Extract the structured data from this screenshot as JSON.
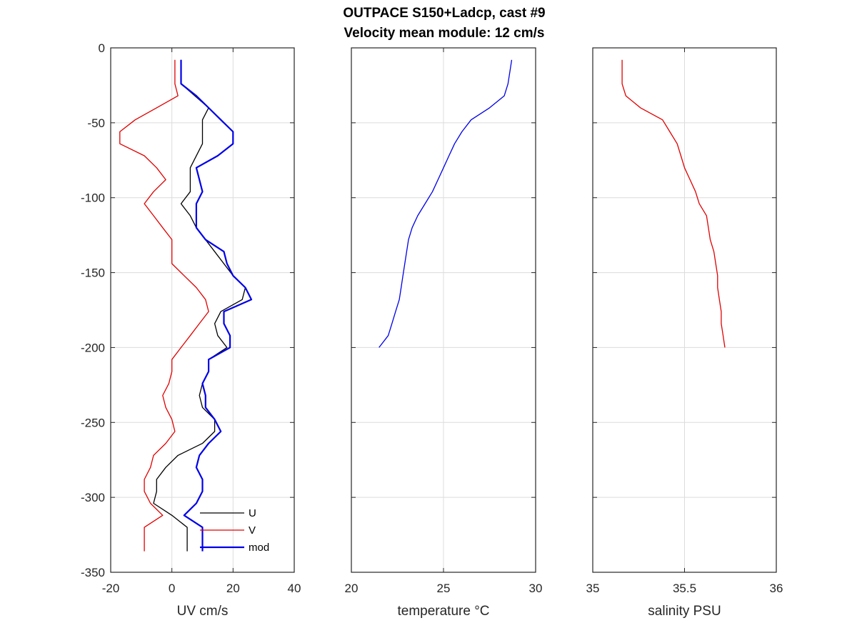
{
  "figure": {
    "title_line1": "OUTPACE S150+Ladcp, cast #9",
    "title_line2": "Velocity mean module:  12 cm/s"
  },
  "chart_data": [
    {
      "type": "line",
      "xlabel": "UV cm/s",
      "ylabel": "",
      "xlim": [
        -20,
        40
      ],
      "ylim": [
        -350,
        0
      ],
      "xticks": [
        -20,
        0,
        20,
        40
      ],
      "yticks": [
        -350,
        -300,
        -250,
        -200,
        -150,
        -100,
        -50,
        0
      ],
      "xtick_labels": [
        "-20",
        "0",
        "20",
        "40"
      ],
      "ytick_labels": [
        "-350",
        "-300",
        "-250",
        "-200",
        "-150",
        "-100",
        "-50",
        "0"
      ],
      "grid": true,
      "legend": "bottom-right",
      "series": [
        {
          "name": "U",
          "color": "#000000",
          "width": 1.3,
          "points": [
            [
              3,
              -8
            ],
            [
              3,
              -24
            ],
            [
              12,
              -40
            ],
            [
              10,
              -48
            ],
            [
              10,
              -64
            ],
            [
              6,
              -80
            ],
            [
              6,
              -96
            ],
            [
              3,
              -104
            ],
            [
              6,
              -112
            ],
            [
              8,
              -120
            ],
            [
              14,
              -136
            ],
            [
              20,
              -152
            ],
            [
              24,
              -160
            ],
            [
              23,
              -168
            ],
            [
              16,
              -176
            ],
            [
              14,
              -184
            ],
            [
              15,
              -192
            ],
            [
              18,
              -200
            ],
            [
              12,
              -208
            ],
            [
              12,
              -216
            ],
            [
              10,
              -224
            ],
            [
              9,
              -232
            ],
            [
              10,
              -240
            ],
            [
              14,
              -248
            ],
            [
              14,
              -256
            ],
            [
              10,
              -264
            ],
            [
              2,
              -272
            ],
            [
              -2,
              -280
            ],
            [
              -5,
              -288
            ],
            [
              -5,
              -296
            ],
            [
              -6,
              -304
            ],
            [
              0,
              -312
            ],
            [
              5,
              -320
            ],
            [
              5,
              -336
            ]
          ]
        },
        {
          "name": "V",
          "color": "#e00000",
          "width": 1.3,
          "points": [
            [
              1,
              -8
            ],
            [
              1,
              -24
            ],
            [
              2,
              -32
            ],
            [
              -5,
              -40
            ],
            [
              -12,
              -48
            ],
            [
              -17,
              -56
            ],
            [
              -17,
              -64
            ],
            [
              -9,
              -72
            ],
            [
              -5,
              -80
            ],
            [
              -2,
              -88
            ],
            [
              -6,
              -96
            ],
            [
              -9,
              -104
            ],
            [
              -6,
              -112
            ],
            [
              -3,
              -120
            ],
            [
              0,
              -128
            ],
            [
              0,
              -136
            ],
            [
              0,
              -144
            ],
            [
              4,
              -152
            ],
            [
              8,
              -160
            ],
            [
              11,
              -168
            ],
            [
              12,
              -176
            ],
            [
              9,
              -184
            ],
            [
              6,
              -192
            ],
            [
              3,
              -200
            ],
            [
              0,
              -208
            ],
            [
              0,
              -216
            ],
            [
              -1,
              -224
            ],
            [
              -3,
              -232
            ],
            [
              -2,
              -240
            ],
            [
              0,
              -248
            ],
            [
              1,
              -256
            ],
            [
              -2,
              -264
            ],
            [
              -6,
              -272
            ],
            [
              -7,
              -280
            ],
            [
              -9,
              -288
            ],
            [
              -9,
              -296
            ],
            [
              -7,
              -304
            ],
            [
              -3,
              -312
            ],
            [
              -9,
              -320
            ],
            [
              -9,
              -336
            ]
          ]
        },
        {
          "name": "mod",
          "color": "#0000e8",
          "width": 2.2,
          "points": [
            [
              3,
              -8
            ],
            [
              3,
              -24
            ],
            [
              8,
              -32
            ],
            [
              12,
              -40
            ],
            [
              16,
              -48
            ],
            [
              20,
              -56
            ],
            [
              20,
              -64
            ],
            [
              15,
              -72
            ],
            [
              8,
              -80
            ],
            [
              9,
              -88
            ],
            [
              10,
              -96
            ],
            [
              8,
              -104
            ],
            [
              8,
              -112
            ],
            [
              8,
              -120
            ],
            [
              11,
              -128
            ],
            [
              17,
              -136
            ],
            [
              18,
              -144
            ],
            [
              20,
              -152
            ],
            [
              24,
              -160
            ],
            [
              26,
              -168
            ],
            [
              17,
              -176
            ],
            [
              17,
              -184
            ],
            [
              19,
              -192
            ],
            [
              19,
              -200
            ],
            [
              12,
              -208
            ],
            [
              12,
              -216
            ],
            [
              10,
              -224
            ],
            [
              11,
              -232
            ],
            [
              11,
              -240
            ],
            [
              14,
              -248
            ],
            [
              16,
              -256
            ],
            [
              12,
              -264
            ],
            [
              9,
              -272
            ],
            [
              8,
              -280
            ],
            [
              10,
              -288
            ],
            [
              10,
              -296
            ],
            [
              8,
              -304
            ],
            [
              4,
              -312
            ],
            [
              10,
              -320
            ],
            [
              10,
              -336
            ]
          ]
        }
      ]
    },
    {
      "type": "line",
      "xlabel": "temperature °C",
      "ylabel": "",
      "xlim": [
        20,
        30
      ],
      "ylim": [
        -350,
        0
      ],
      "xticks": [
        20,
        25,
        30
      ],
      "yticks": [
        -350,
        -300,
        -250,
        -200,
        -150,
        -100,
        -50,
        0
      ],
      "xtick_labels": [
        "20",
        "25",
        "30"
      ],
      "grid": true,
      "series": [
        {
          "color": "#0000e8",
          "width": 1.3,
          "points": [
            [
              28.7,
              -8
            ],
            [
              28.6,
              -16
            ],
            [
              28.5,
              -24
            ],
            [
              28.3,
              -32
            ],
            [
              27.5,
              -40
            ],
            [
              26.5,
              -48
            ],
            [
              26.0,
              -56
            ],
            [
              25.6,
              -64
            ],
            [
              25.3,
              -72
            ],
            [
              25.0,
              -80
            ],
            [
              24.7,
              -88
            ],
            [
              24.4,
              -96
            ],
            [
              24.0,
              -104
            ],
            [
              23.6,
              -112
            ],
            [
              23.3,
              -120
            ],
            [
              23.1,
              -128
            ],
            [
              23.0,
              -136
            ],
            [
              22.9,
              -144
            ],
            [
              22.8,
              -152
            ],
            [
              22.7,
              -160
            ],
            [
              22.6,
              -168
            ],
            [
              22.4,
              -176
            ],
            [
              22.2,
              -184
            ],
            [
              22.0,
              -192
            ],
            [
              21.5,
              -200
            ]
          ]
        }
      ]
    },
    {
      "type": "line",
      "xlabel": "salinity PSU",
      "ylabel": "",
      "xlim": [
        35,
        36
      ],
      "ylim": [
        -350,
        0
      ],
      "xticks": [
        35,
        35.5,
        36
      ],
      "yticks": [
        -350,
        -300,
        -250,
        -200,
        -150,
        -100,
        -50,
        0
      ],
      "xtick_labels": [
        "35",
        "35.5",
        "36"
      ],
      "grid": true,
      "series": [
        {
          "color": "#e00000",
          "width": 1.3,
          "points": [
            [
              35.16,
              -8
            ],
            [
              35.16,
              -16
            ],
            [
              35.16,
              -24
            ],
            [
              35.18,
              -32
            ],
            [
              35.26,
              -40
            ],
            [
              35.38,
              -48
            ],
            [
              35.42,
              -56
            ],
            [
              35.46,
              -64
            ],
            [
              35.48,
              -72
            ],
            [
              35.5,
              -80
            ],
            [
              35.53,
              -88
            ],
            [
              35.56,
              -96
            ],
            [
              35.58,
              -104
            ],
            [
              35.62,
              -112
            ],
            [
              35.63,
              -120
            ],
            [
              35.64,
              -128
            ],
            [
              35.66,
              -136
            ],
            [
              35.67,
              -144
            ],
            [
              35.68,
              -152
            ],
            [
              35.68,
              -160
            ],
            [
              35.69,
              -168
            ],
            [
              35.7,
              -176
            ],
            [
              35.7,
              -184
            ],
            [
              35.71,
              -192
            ],
            [
              35.72,
              -200
            ]
          ]
        }
      ]
    }
  ]
}
